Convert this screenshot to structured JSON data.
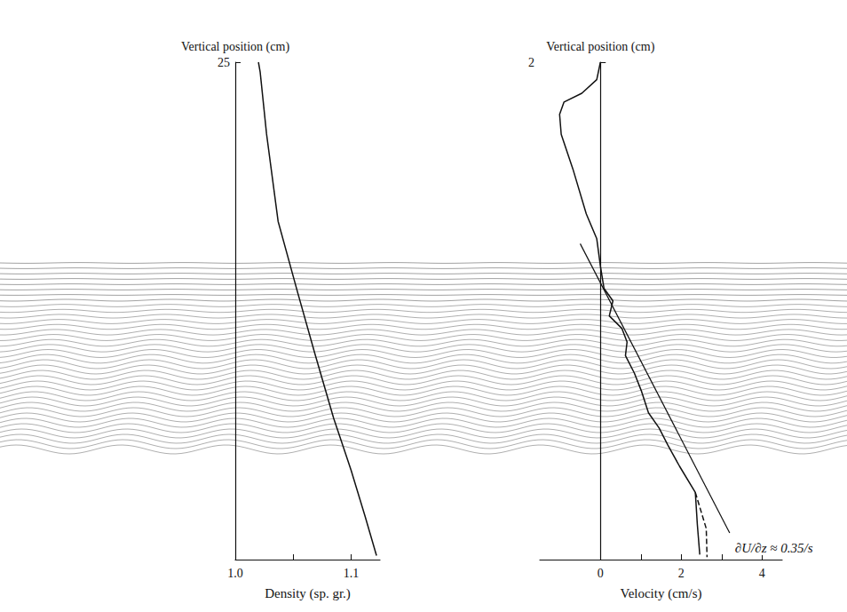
{
  "chart_data": [
    {
      "type": "line",
      "x_label": "Density (sp. gr.)",
      "y_label": "Vertical position (cm)",
      "xlim": [
        1.0,
        1.125
      ],
      "xticks": [
        {
          "value": 1,
          "label": "1.0"
        },
        1.1
      ],
      "x_minor_ticks": [
        1.05
      ],
      "ylim": [
        0,
        25
      ],
      "yticks": [
        25
      ],
      "grid": false,
      "series": [
        {
          "color": "#111111",
          "line_style": "solid",
          "x": [
            1.02,
            1.0215,
            1.027,
            1.037,
            1.054,
            1.069,
            1.085,
            1.1,
            1.112,
            1.122
          ],
          "values": [
            25,
            24.5,
            21.4,
            17.0,
            13.4,
            10.3,
            7.1,
            4.5,
            2.2,
            0.2
          ]
        }
      ]
    },
    {
      "type": "line",
      "x_label": "Velocity (cm/s)",
      "y_label": "Vertical position (cm)",
      "xlim": [
        -1.5,
        4.5
      ],
      "xticks": [
        0,
        2,
        4
      ],
      "x_minor_ticks": [
        1,
        3
      ],
      "ylim": [
        0,
        2
      ],
      "yticks": [
        2
      ],
      "grid": false,
      "series": [
        {
          "color": "#111111",
          "line_style": "solid",
          "x": [
            0,
            -0.09,
            -0.46,
            -0.9,
            -1.01,
            -0.97,
            -0.68,
            -0.35,
            -0.09,
            0,
            0.09,
            0.31,
            0.22,
            0.53,
            0.66,
            0.62,
            0.84,
            1.01,
            1.19,
            1.45,
            1.67,
            1.96,
            2.35,
            2.4,
            2.46
          ],
          "values": [
            2.0,
            1.93,
            1.875,
            1.84,
            1.79,
            1.71,
            1.57,
            1.39,
            1.29,
            1.18,
            1.09,
            1.04,
            0.98,
            0.93,
            0.875,
            0.82,
            0.75,
            0.68,
            0.59,
            0.53,
            0.46,
            0.375,
            0.27,
            0.14,
            0.02
          ]
        },
        {
          "color": "#111111",
          "line_style": "dashed",
          "x": [
            2.35,
            2.62,
            2.64
          ],
          "values": [
            0.27,
            0.125,
            0.01
          ]
        }
      ],
      "annotations": [
        {
          "text": "∂U/∂z ≈ 0.35/s",
          "color": "#111111",
          "x": [
            -0.5,
            3.2
          ],
          "y": [
            1.27,
            0.107
          ]
        }
      ]
    }
  ]
}
